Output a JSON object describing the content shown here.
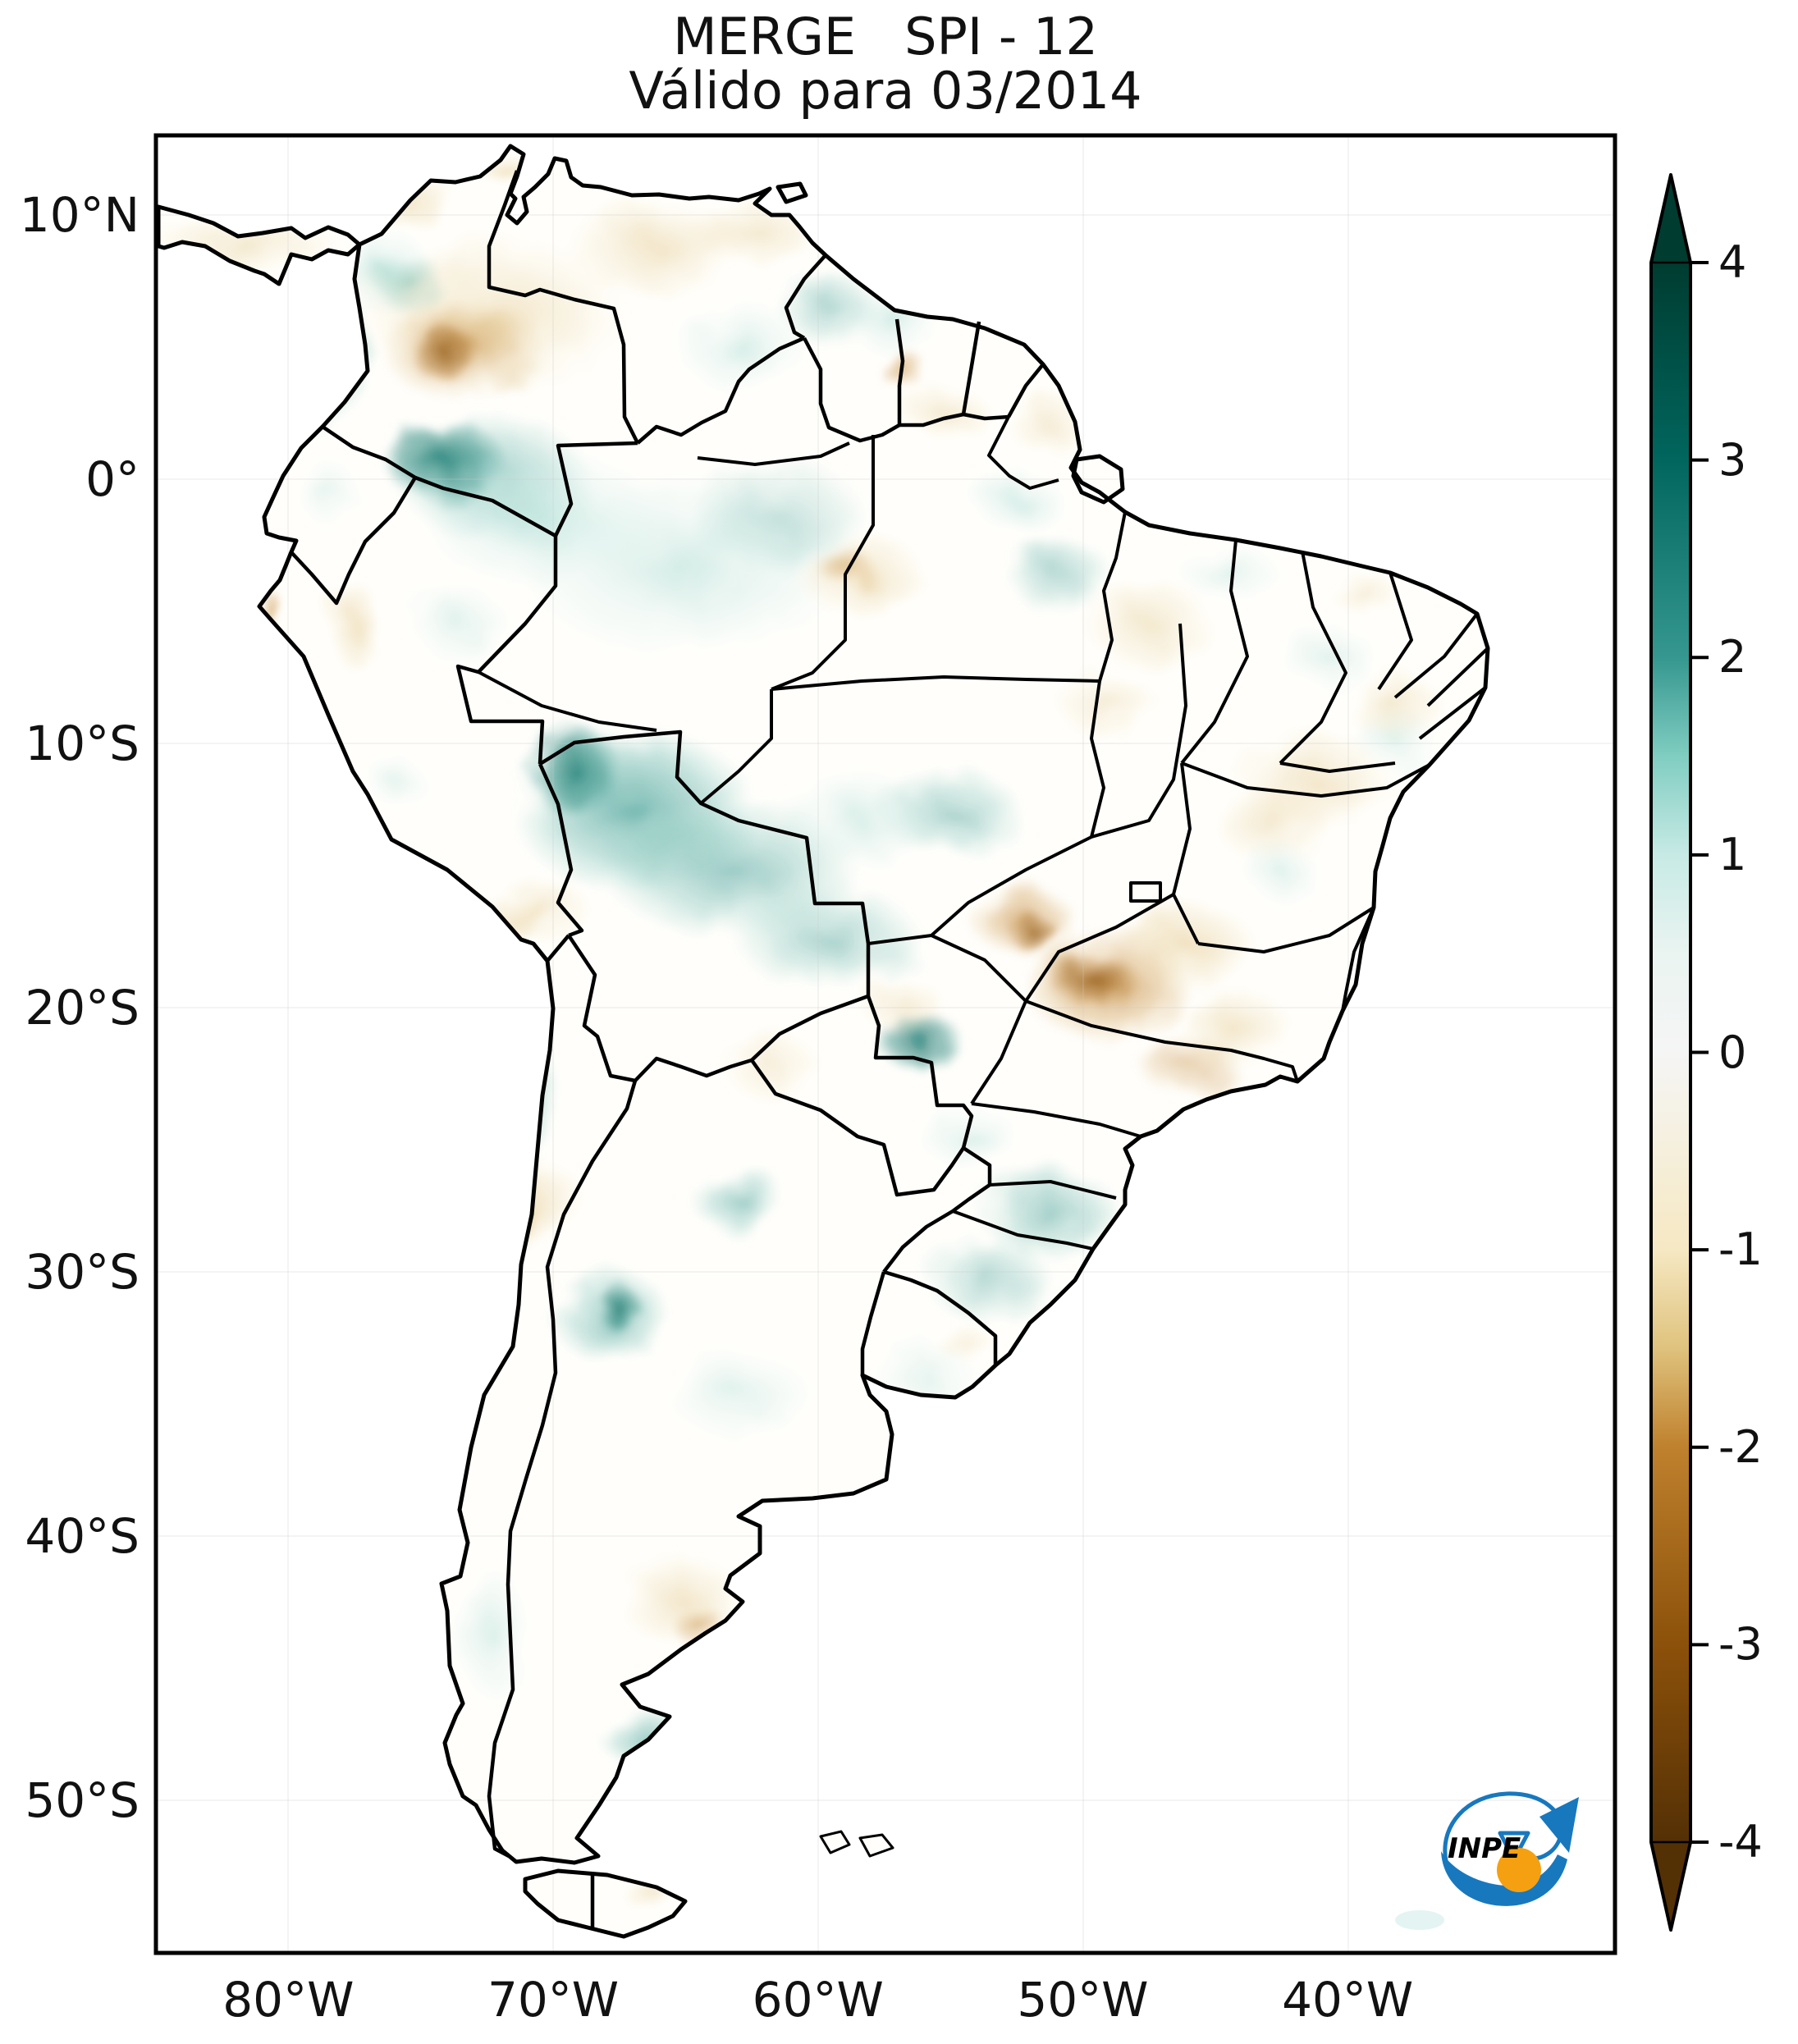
{
  "figure": {
    "title_line1": "MERGE   SPI - 12",
    "title_line2": "Válido para 03/2014"
  },
  "axes": {
    "extent": {
      "lon_min": -85,
      "lon_max": -30,
      "lat_min": -56,
      "lat_max": 13
    },
    "lat_ticks": [
      {
        "label": "10°N",
        "deg": 10
      },
      {
        "label": "0°",
        "deg": 0
      },
      {
        "label": "10°S",
        "deg": -10
      },
      {
        "label": "20°S",
        "deg": -20
      },
      {
        "label": "30°S",
        "deg": -30
      },
      {
        "label": "40°S",
        "deg": -40
      },
      {
        "label": "50°S",
        "deg": -50
      }
    ],
    "lon_ticks": [
      {
        "label": "80°W",
        "deg": -80
      },
      {
        "label": "70°W",
        "deg": -70
      },
      {
        "label": "60°W",
        "deg": -60
      },
      {
        "label": "50°W",
        "deg": -50
      },
      {
        "label": "40°W",
        "deg": -40
      }
    ]
  },
  "colorbar": {
    "min": -4,
    "max": 4,
    "ticks": [
      {
        "label": "4",
        "value": 4
      },
      {
        "label": "3",
        "value": 3
      },
      {
        "label": "2",
        "value": 2
      },
      {
        "label": "1",
        "value": 1
      },
      {
        "label": "0",
        "value": 0
      },
      {
        "label": "-1",
        "value": -1
      },
      {
        "label": "-2",
        "value": -2
      },
      {
        "label": "-3",
        "value": -3
      },
      {
        "label": "-4",
        "value": -4
      }
    ],
    "stops": [
      {
        "value": 4,
        "color": "#003c30"
      },
      {
        "value": 3,
        "color": "#01665e"
      },
      {
        "value": 2,
        "color": "#35978f"
      },
      {
        "value": 1.5,
        "color": "#80cdc1"
      },
      {
        "value": 1,
        "color": "#c7eae5"
      },
      {
        "value": 0.5,
        "color": "#eaf4f1"
      },
      {
        "value": 0,
        "color": "#f5f5f5"
      },
      {
        "value": -0.5,
        "color": "#f5efdc"
      },
      {
        "value": -1,
        "color": "#f6e8c3"
      },
      {
        "value": -1.5,
        "color": "#dfc27d"
      },
      {
        "value": -2,
        "color": "#bf812d"
      },
      {
        "value": -3,
        "color": "#8c510a"
      },
      {
        "value": -4,
        "color": "#543005"
      }
    ]
  },
  "logo": {
    "text": "INPE",
    "blue": "#1878be",
    "orange": "#f5a011"
  },
  "chart_data": {
    "type": "heatmap",
    "title": "MERGE   SPI - 12",
    "subtitle": "Válido para 03/2014",
    "xlabel": "",
    "ylabel": "",
    "x_ticks": [
      "80°W",
      "70°W",
      "60°W",
      "50°W",
      "40°W"
    ],
    "y_ticks": [
      "10°N",
      "0°",
      "10°S",
      "20°S",
      "30°S",
      "40°S",
      "50°S"
    ],
    "colorbar_ticks": [
      4,
      3,
      2,
      1,
      0,
      -1,
      -2,
      -3,
      -4
    ],
    "colorbar_range": [
      -4,
      4
    ],
    "legend_position": "right"
  }
}
